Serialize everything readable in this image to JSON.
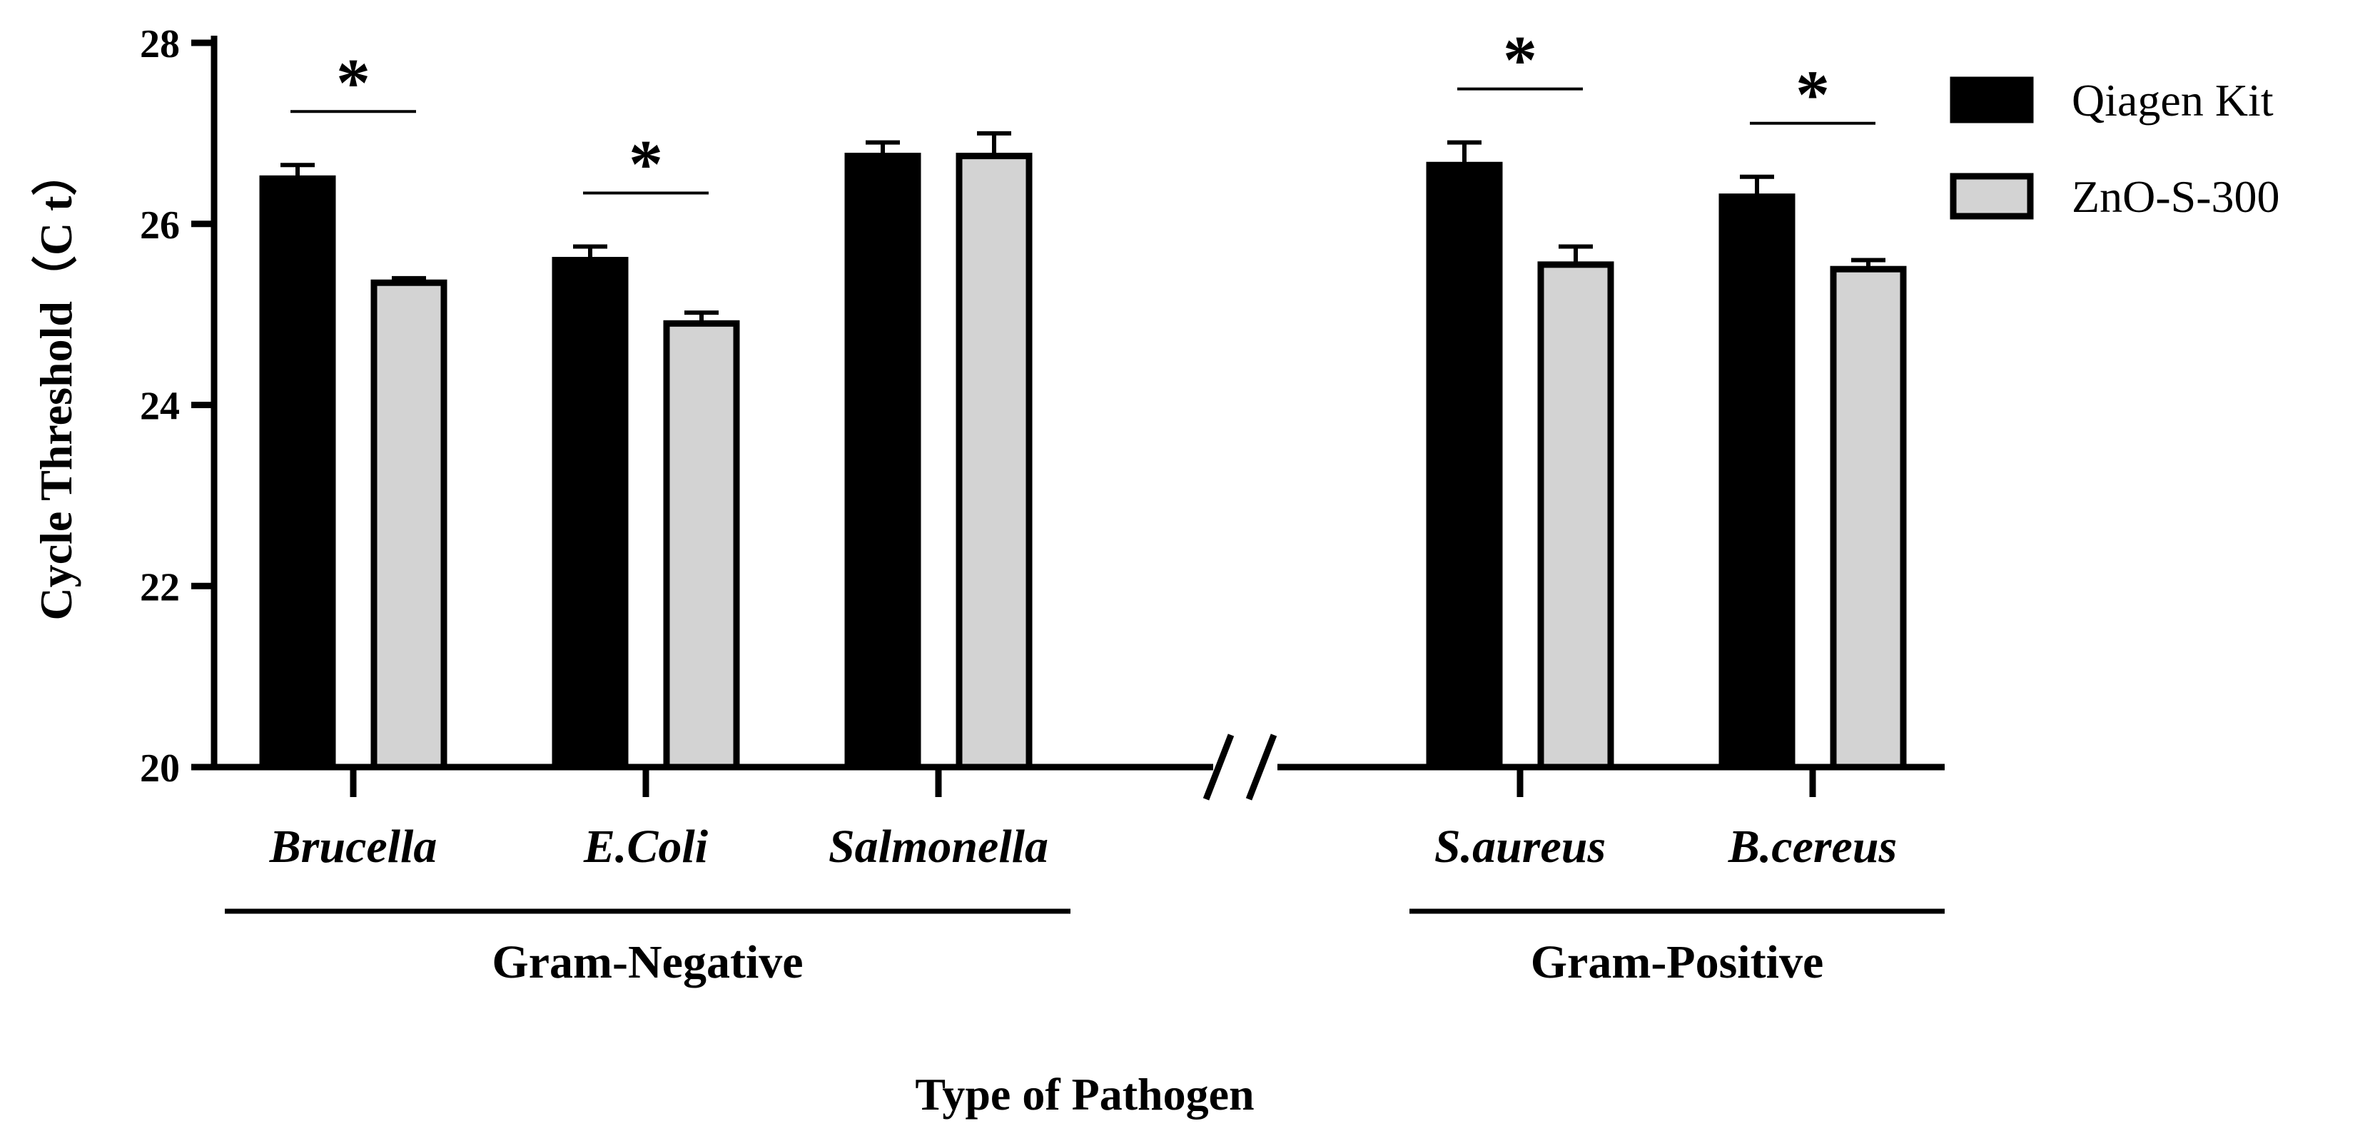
{
  "chart_data": {
    "type": "bar",
    "categories": [
      "Brucella",
      "E.Coli",
      "Salmonella",
      "S.aureus",
      "B.cereus"
    ],
    "series": [
      {
        "name": "Qiagen Kit",
        "values": [
          26.5,
          25.6,
          26.75,
          26.65,
          26.3
        ],
        "errors": [
          0.15,
          0.15,
          0.15,
          0.25,
          0.22
        ],
        "color": "#000000"
      },
      {
        "name": "ZnO-S-300",
        "values": [
          25.35,
          24.9,
          26.75,
          25.55,
          25.5
        ],
        "errors": [
          0.05,
          0.12,
          0.25,
          0.2,
          0.1
        ],
        "color": "#d3d3d3"
      }
    ],
    "significance": [
      "*",
      "*",
      "",
      "*",
      "*"
    ],
    "groups": [
      {
        "label": "Gram-Negative",
        "categories": [
          "Brucella",
          "E.Coli",
          "Salmonella"
        ]
      },
      {
        "label": "Gram-Positive",
        "categories": [
          "S.aureus",
          "B.cereus"
        ]
      }
    ],
    "xlabel": "Type of Pathogen",
    "ylabel": "Cycle Threshold（C t）",
    "ylim": [
      20,
      28
    ],
    "yticks": [
      20,
      22,
      24,
      26,
      28
    ],
    "legend_position": "top-right",
    "axis_break": true
  }
}
